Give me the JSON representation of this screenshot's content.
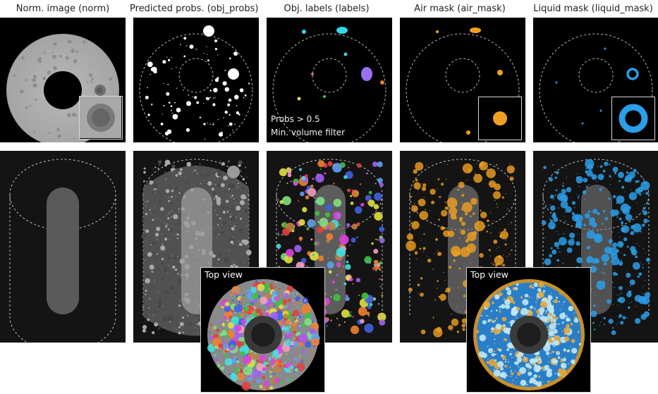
{
  "columns": [
    {
      "title": "Norm. image (norm)"
    },
    {
      "title": "Predicted probs. (obj_probs)"
    },
    {
      "title": "Obj. labels (labels)"
    },
    {
      "title": "Air mask (air_mask)"
    },
    {
      "title": "Liquid mask (liquid_mask)"
    }
  ],
  "labels_caption": {
    "line1": "Probs > 0.5",
    "line2": "Min. volume filter"
  },
  "top_view_label_labels": "Top view",
  "top_view_label_liquid": "Top view",
  "colors": {
    "air": "#f0a020",
    "liquid": "#2a9ee8",
    "label_cyan": "#30d8e8",
    "label_purple": "#9a70f0"
  }
}
